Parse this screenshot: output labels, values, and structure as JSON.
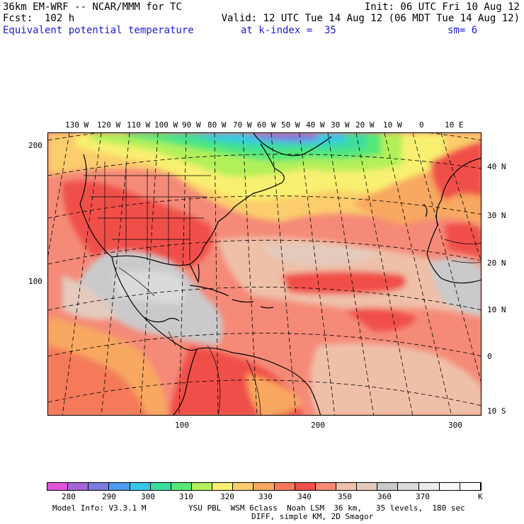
{
  "header": {
    "model": "36km EM-WRF -- NCAR/MMM for TC",
    "init": "Init: 06 UTC Fri 10 Aug 12",
    "fcst": "Fcst:  102 h",
    "valid": "Valid: 12 UTC Tue 14 Aug 12 (06 MDT Tue 14 Aug 12)",
    "field": "Equivalent potential temperature",
    "level": "at k-index =  35",
    "smooth": "sm= 6"
  },
  "axes": {
    "lon_top": [
      "130 W",
      "120 W",
      "110 W",
      "100 W",
      "90 W",
      "80 W",
      "70 W",
      "60 W",
      "50 W",
      "40 W",
      "30 W",
      "20 W",
      "10 W",
      "0",
      "10 E"
    ],
    "lat_right": [
      "40 N",
      "30 N",
      "20 N",
      "10 N",
      "0",
      "10 S"
    ],
    "grid_y": [
      "200",
      "100"
    ],
    "grid_x": [
      "100",
      "200",
      "300"
    ]
  },
  "legend": {
    "colors": [
      "#e055d8",
      "#a565d8",
      "#7b7be0",
      "#4d9cf0",
      "#37c8e8",
      "#3cdca0",
      "#55e878",
      "#b2f05a",
      "#f8f070",
      "#fbcd6c",
      "#f8a860",
      "#f47a5a",
      "#f0504a",
      "#f58a78",
      "#efc0a8",
      "#e3cabd",
      "#cacacc",
      "#dadada",
      "#ececec",
      "#f8f8f8",
      "#ffffff"
    ],
    "labels": [
      "280",
      "290",
      "300",
      "310",
      "320",
      "330",
      "340",
      "350",
      "360",
      "370"
    ],
    "unit": "K"
  },
  "footer": {
    "model_info": "Model Info: V3.3.1 M",
    "physics": "YSU PBL  WSM 6class  Noah LSM  36 km,   35 levels,  180 sec",
    "diff": "DIFF, simple KM, 2D Smagor"
  }
}
